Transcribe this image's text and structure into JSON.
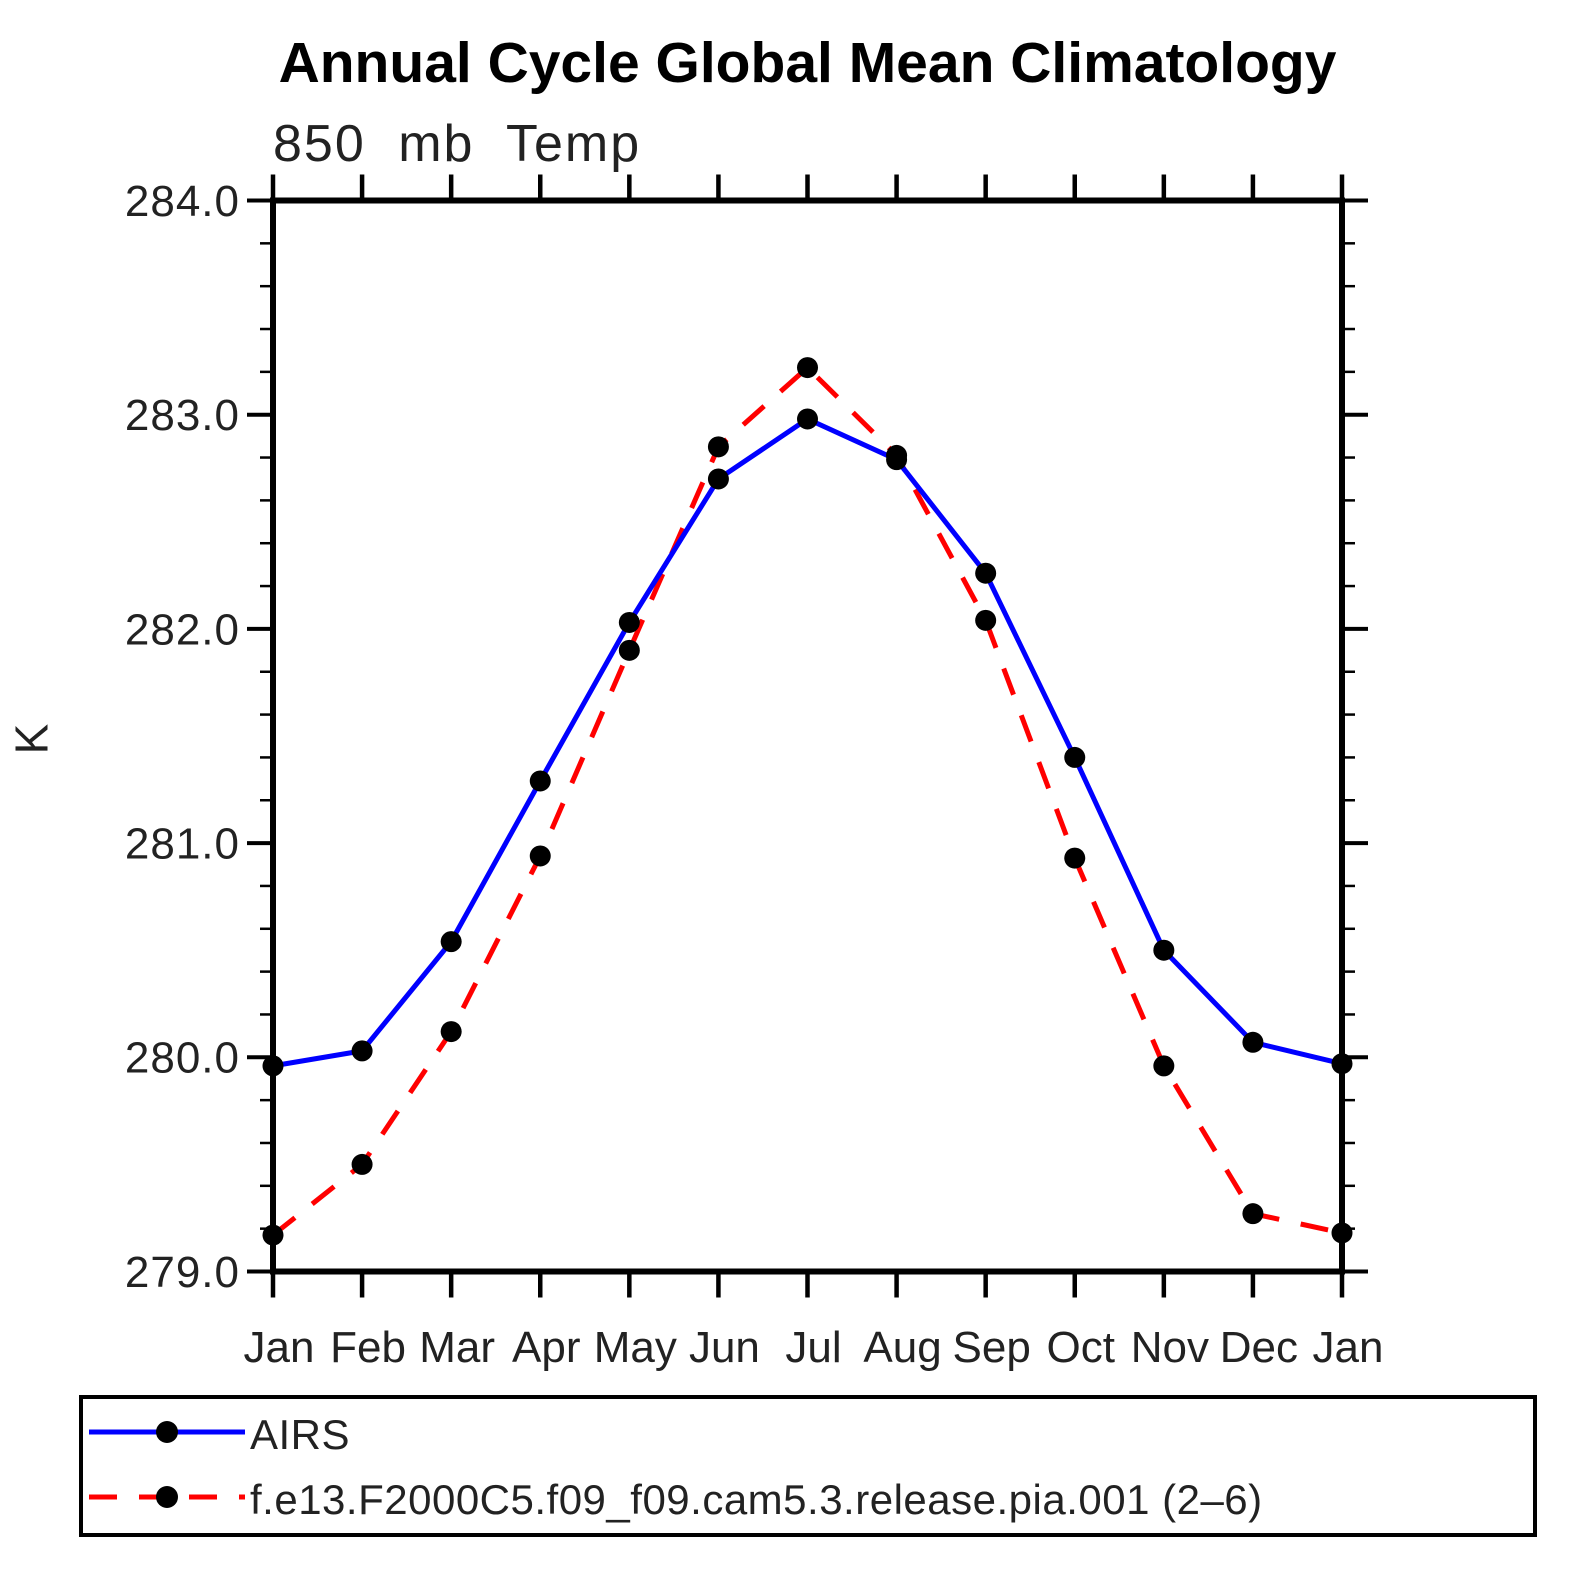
{
  "chart_data": {
    "type": "line",
    "title": "Annual Cycle Global Mean Climatology",
    "subtitle": "850 mb Temp",
    "ylabel": "K",
    "xlabel": "",
    "x_tick_labels": [
      "Jan",
      "Feb",
      "Mar",
      "Apr",
      "May",
      "Jun",
      "Jul",
      "Aug",
      "Sep",
      "Oct",
      "Nov",
      "Dec",
      "Jan"
    ],
    "y_tick_labels": [
      "284.0",
      "283.0",
      "282.0",
      "281.0",
      "280.0",
      "279.0"
    ],
    "y_ticks": [
      284.0,
      283.0,
      282.0,
      281.0,
      280.0,
      279.0
    ],
    "ylim": [
      279.0,
      284.0
    ],
    "y_minor_step": 0.2,
    "grid": false,
    "legend_position": "bottom",
    "series": [
      {
        "name": "AIRS",
        "color": "#0000ff",
        "line_style": "solid",
        "marker": "circle",
        "marker_color": "#000000",
        "values": [
          279.96,
          280.03,
          280.54,
          281.29,
          282.03,
          282.7,
          282.98,
          282.79,
          282.26,
          281.4,
          280.5,
          280.07,
          279.97
        ]
      },
      {
        "name": "f.e13.F2000C5.f09_f09.cam5.3.release.pia.001 (2–6)",
        "color": "#ff0000",
        "line_style": "dashed",
        "marker": "circle",
        "marker_color": "#000000",
        "values": [
          279.17,
          279.5,
          280.12,
          280.94,
          281.9,
          282.85,
          283.22,
          282.81,
          282.04,
          280.93,
          279.96,
          279.27,
          279.18
        ]
      }
    ],
    "colors": {
      "axis": "#000000",
      "background": "#ffffff"
    }
  }
}
